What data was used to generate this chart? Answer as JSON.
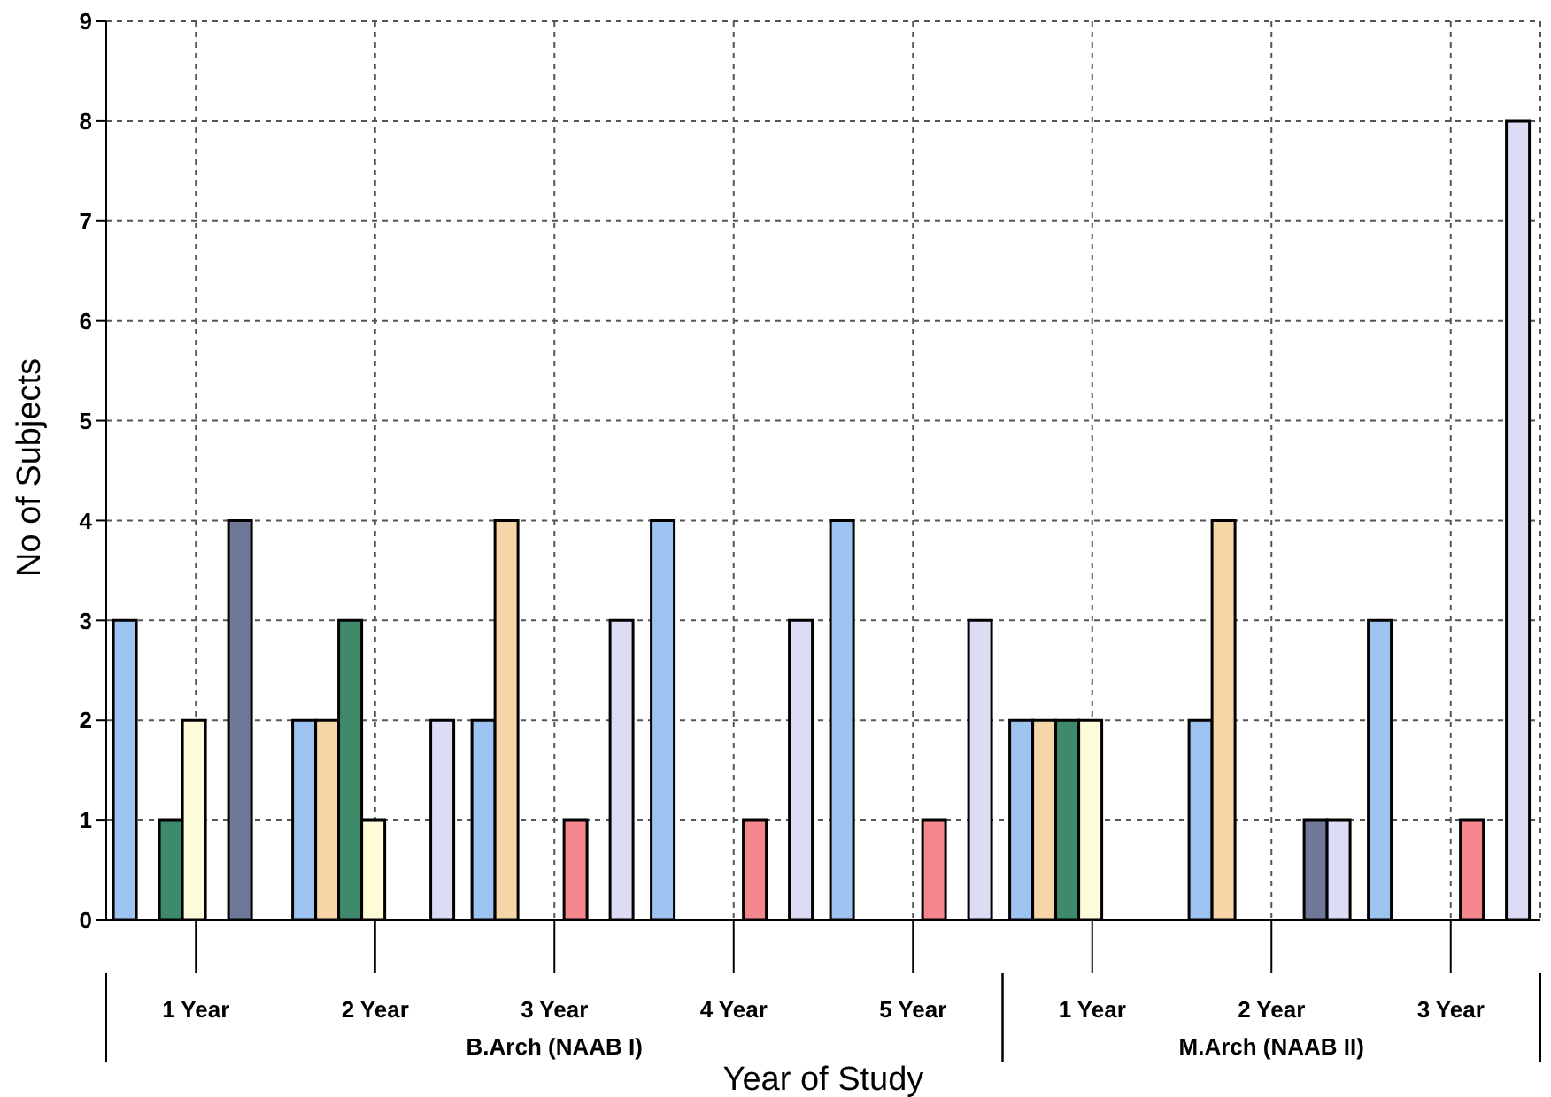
{
  "chart_data": {
    "type": "bar",
    "xlabel": "Year of Study",
    "ylabel": "No of Subjects",
    "categories": [
      "1 Year",
      "2 Year",
      "3 Year",
      "4 Year",
      "5 Year",
      "1 Year",
      "2 Year",
      "3 Year"
    ],
    "series": [
      {
        "color": "#9dc3f0",
        "values": [
          3,
          2,
          2,
          4,
          4,
          2,
          2,
          3
        ]
      },
      {
        "color": "#f6d6a6",
        "values": [
          0,
          2,
          4,
          0,
          0,
          2,
          4,
          0
        ]
      },
      {
        "color": "#3e8a6a",
        "values": [
          1,
          3,
          0,
          0,
          0,
          2,
          0,
          0
        ]
      },
      {
        "color": "#fdfbd8",
        "values": [
          2,
          1,
          0,
          0,
          0,
          2,
          0,
          0
        ]
      },
      {
        "color": "#f4868e",
        "values": [
          0,
          0,
          1,
          1,
          1,
          0,
          0,
          1
        ]
      },
      {
        "color": "#6f7896",
        "values": [
          4,
          0,
          0,
          0,
          0,
          0,
          1,
          0
        ]
      },
      {
        "color": "#dcdcf4",
        "values": [
          0,
          2,
          3,
          3,
          3,
          0,
          1,
          8
        ]
      }
    ],
    "ylim": [
      0,
      9
    ],
    "yticks": [
      0,
      1,
      2,
      3,
      4,
      5,
      6,
      7,
      8,
      9
    ],
    "grid": true,
    "legend": false,
    "annotations": [
      "B.Arch (NAAB I)",
      "M.Arch (NAAB II)"
    ]
  }
}
